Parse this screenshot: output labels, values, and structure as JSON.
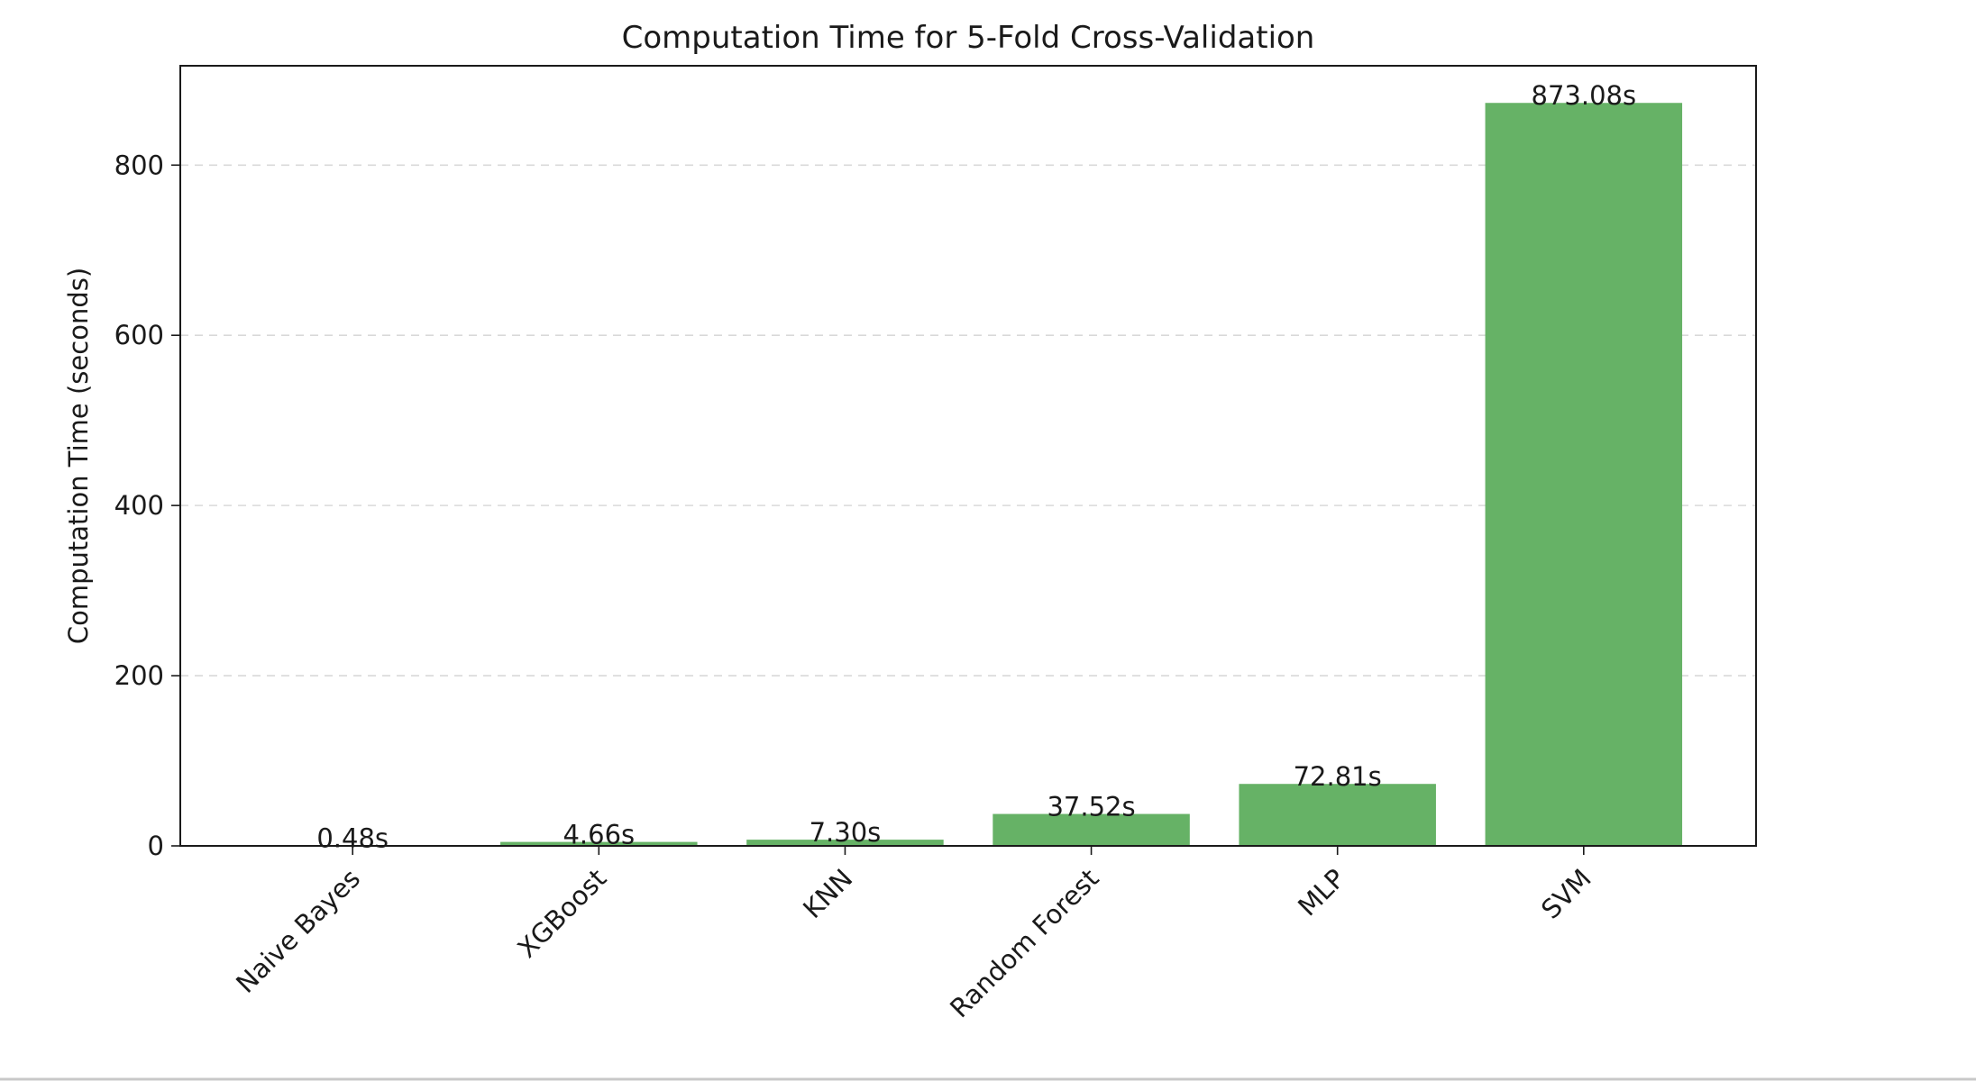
{
  "chart_data": {
    "type": "bar",
    "title": "Computation Time for 5-Fold Cross-Validation",
    "xlabel": "",
    "ylabel": "Computation Time (seconds)",
    "categories": [
      "Naive Bayes",
      "XGBoost",
      "KNN",
      "Random Forest",
      "MLP",
      "SVM"
    ],
    "values": [
      0.48,
      4.66,
      7.3,
      37.52,
      72.81,
      873.08
    ],
    "data_labels": [
      "0.48s",
      "4.66s",
      "7.30s",
      "37.52s",
      "72.81s",
      "873.08s"
    ],
    "ylim": [
      0,
      916.73
    ],
    "yticks": [
      0,
      200,
      400,
      600,
      800
    ],
    "ytick_labels": [
      "0",
      "200",
      "400",
      "600",
      "800"
    ],
    "grid": "y-dashed",
    "bar_color": "#66b266",
    "legend": "none"
  }
}
